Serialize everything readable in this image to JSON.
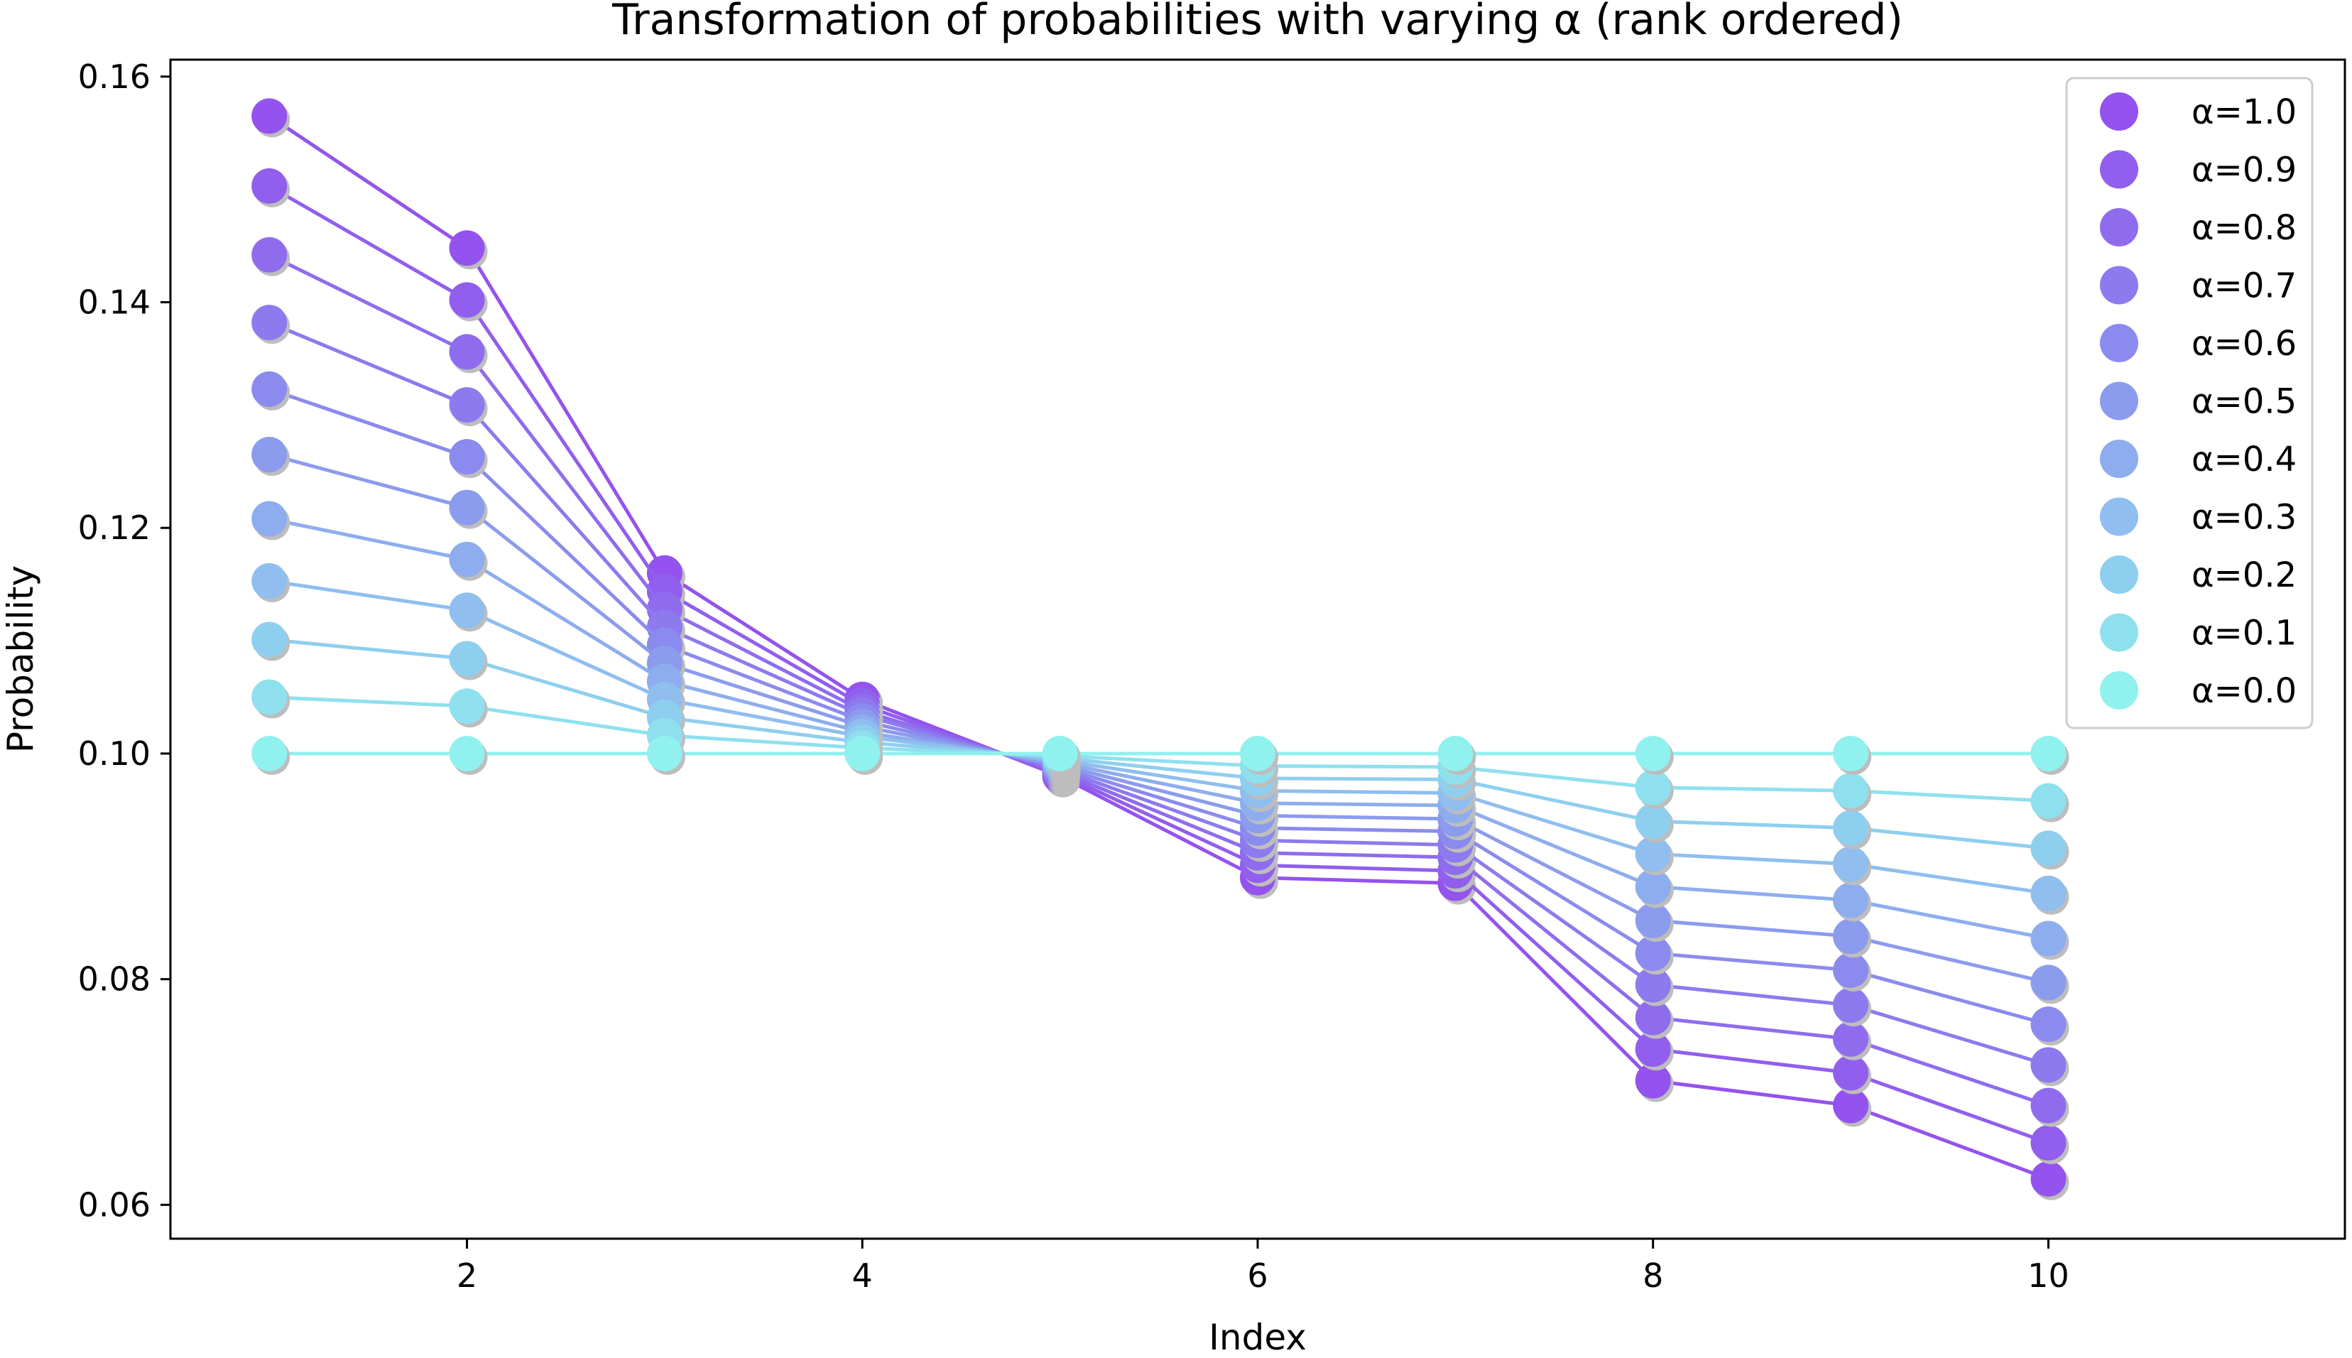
{
  "chart_data": {
    "type": "line",
    "title": "Transformation of probabilities with varying α (rank ordered)",
    "xlabel": "Index",
    "ylabel": "Probability",
    "xlim": [
      0.5,
      11.5
    ],
    "ylim": [
      0.057,
      0.1615
    ],
    "xticks": [
      2,
      4,
      6,
      8,
      10
    ],
    "yticks": [
      0.06,
      0.08,
      0.1,
      0.12,
      0.14,
      0.16
    ],
    "ytick_labels": [
      "0.06",
      "0.08",
      "0.10",
      "0.12",
      "0.14",
      "0.16"
    ],
    "xtick_labels": [
      "2",
      "4",
      "6",
      "8",
      "10"
    ],
    "grid": false,
    "legend_position": "top-right",
    "markers": "circle",
    "x": [
      1,
      2,
      3,
      4,
      5,
      6,
      7,
      8,
      9,
      10
    ],
    "series": [
      {
        "name": "α=1.0",
        "color": "#9452EE",
        "values": [
          0.1565,
          0.1448,
          0.116,
          0.1048,
          0.098,
          0.089,
          0.0885,
          0.071,
          0.0688,
          0.0623
        ]
      },
      {
        "name": "α=0.9",
        "color": "#915EEE",
        "values": [
          0.1503,
          0.1402,
          0.1144,
          0.1043,
          0.0982,
          0.0901,
          0.0896,
          0.0738,
          0.0717,
          0.0655
        ]
      },
      {
        "name": "α=0.8",
        "color": "#8F6CEE",
        "values": [
          0.1442,
          0.1356,
          0.1128,
          0.1038,
          0.0984,
          0.0912,
          0.0908,
          0.0766,
          0.0747,
          0.0688
        ]
      },
      {
        "name": "α=0.7",
        "color": "#8C7AEE",
        "values": [
          0.1382,
          0.1309,
          0.1112,
          0.1034,
          0.0986,
          0.0923,
          0.0919,
          0.0795,
          0.0777,
          0.0724
        ]
      },
      {
        "name": "α=0.6",
        "color": "#8B8AEE",
        "values": [
          0.1323,
          0.1263,
          0.1096,
          0.1029,
          0.0988,
          0.0934,
          0.0931,
          0.0823,
          0.0808,
          0.076
        ]
      },
      {
        "name": "α=0.5",
        "color": "#8B9BEE",
        "values": [
          0.1265,
          0.1218,
          0.108,
          0.1024,
          0.099,
          0.0945,
          0.0942,
          0.0852,
          0.0838,
          0.0797
        ]
      },
      {
        "name": "α=0.4",
        "color": "#8DADEE",
        "values": [
          0.1208,
          0.1172,
          0.1064,
          0.1019,
          0.0992,
          0.0956,
          0.0954,
          0.0882,
          0.087,
          0.0836
        ]
      },
      {
        "name": "α=0.3",
        "color": "#8FBEEF",
        "values": [
          0.1153,
          0.1127,
          0.1048,
          0.1015,
          0.0994,
          0.0967,
          0.0965,
          0.0911,
          0.0902,
          0.0876
        ]
      },
      {
        "name": "α=0.2",
        "color": "#8ECFEF",
        "values": [
          0.1101,
          0.1084,
          0.1032,
          0.101,
          0.0996,
          0.0978,
          0.0977,
          0.094,
          0.0934,
          0.0916
        ]
      },
      {
        "name": "α=0.1",
        "color": "#8FE0EF",
        "values": [
          0.105,
          0.1042,
          0.1016,
          0.1005,
          0.0998,
          0.0989,
          0.0988,
          0.097,
          0.0967,
          0.0958
        ]
      },
      {
        "name": "α=0.0",
        "color": "#91F1EF",
        "values": [
          0.1,
          0.1,
          0.1,
          0.1,
          0.1,
          0.1,
          0.1,
          0.1,
          0.1,
          0.1
        ]
      }
    ]
  }
}
